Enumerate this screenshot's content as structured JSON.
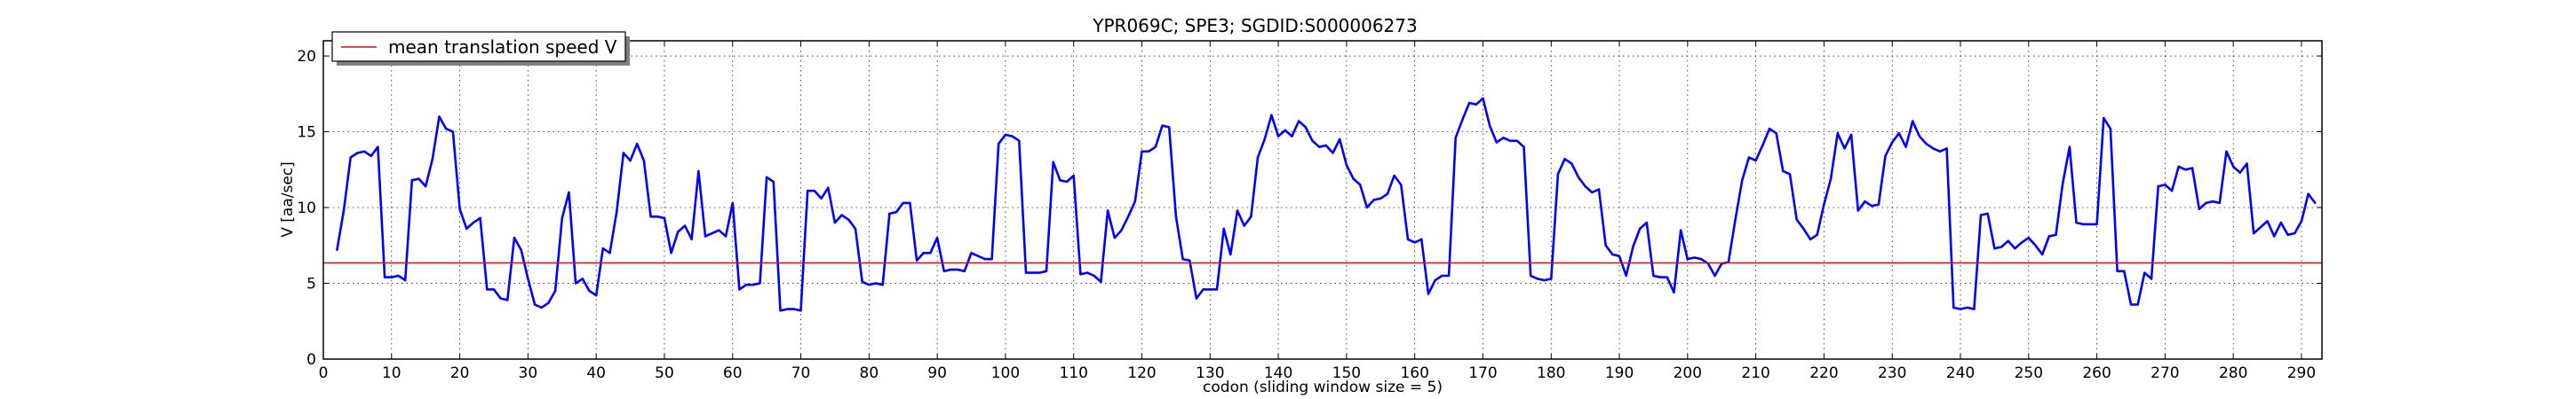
{
  "chart_data": {
    "type": "line",
    "title": "YPR069C; SPE3; SGDID:S000006273",
    "xlabel": "codon  (sliding window size = 5)",
    "ylabel": "V [aa/sec]",
    "xlim": [
      0,
      293
    ],
    "ylim": [
      0,
      21
    ],
    "x_ticks": [
      0,
      10,
      20,
      30,
      40,
      50,
      60,
      70,
      80,
      90,
      100,
      110,
      120,
      130,
      140,
      150,
      160,
      170,
      180,
      190,
      200,
      210,
      220,
      230,
      240,
      250,
      260,
      270,
      280,
      290
    ],
    "y_ticks": [
      0,
      5,
      10,
      15,
      20
    ],
    "grid": true,
    "legend": {
      "position": "top-left",
      "entries": [
        "mean translation speed V"
      ]
    },
    "x_start": 2,
    "series": [
      {
        "color": "#0000ff",
        "values": [
          7.2,
          9.8,
          13.3,
          13.6,
          13.7,
          13.4,
          14.0,
          5.4,
          5.4,
          5.5,
          5.2,
          11.8,
          11.9,
          11.4,
          13.2,
          16.0,
          15.2,
          15.0,
          9.9,
          8.6,
          9.0,
          9.3,
          4.6,
          4.6,
          4.0,
          3.9,
          8.0,
          7.2,
          5.3,
          3.6,
          3.4,
          3.7,
          4.5,
          9.3,
          11.0,
          5.0,
          5.3,
          4.5,
          4.2,
          7.3,
          7.0,
          9.7,
          13.6,
          13.1,
          14.2,
          13.1,
          9.4,
          9.4,
          9.3,
          7.0,
          8.4,
          8.8,
          7.9,
          12.4,
          8.1,
          8.3,
          8.5,
          8.1,
          10.3,
          4.6,
          4.9,
          4.9,
          5.0,
          12.0,
          11.7,
          3.2,
          3.3,
          3.3,
          3.2,
          11.1,
          11.1,
          10.6,
          11.3,
          9.0,
          9.5,
          9.2,
          8.6,
          5.1,
          4.9,
          5.0,
          4.9,
          9.6,
          9.7,
          10.3,
          10.3,
          6.5,
          7.0,
          7.0,
          8.0,
          5.8,
          5.9,
          5.9,
          5.8,
          7.0,
          6.8,
          6.6,
          6.6,
          14.2,
          14.8,
          14.7,
          14.4,
          5.7,
          5.7,
          5.7,
          5.8,
          13.0,
          11.8,
          11.7,
          12.1,
          5.6,
          5.7,
          5.5,
          5.1,
          9.8,
          8.0,
          8.5,
          9.4,
          10.4,
          13.7,
          13.7,
          14.0,
          15.4,
          15.3,
          9.4,
          6.6,
          6.5,
          4.0,
          4.6,
          4.6,
          4.6,
          8.6,
          6.9,
          9.8,
          8.8,
          9.4,
          13.3,
          14.5,
          16.1,
          14.7,
          15.1,
          14.7,
          15.7,
          15.3,
          14.4,
          14.0,
          14.1,
          13.6,
          14.5,
          12.8,
          11.9,
          11.5,
          10.0,
          10.5,
          10.6,
          10.9,
          12.1,
          11.5,
          7.9,
          7.7,
          7.9,
          4.3,
          5.2,
          5.5,
          5.5,
          14.6,
          15.8,
          16.9,
          16.8,
          17.2,
          15.4,
          14.3,
          14.6,
          14.4,
          14.4,
          14.0,
          5.5,
          5.3,
          5.2,
          5.3,
          12.2,
          13.2,
          12.9,
          12.0,
          11.4,
          11.0,
          11.2,
          7.5,
          6.9,
          6.8,
          5.5,
          7.4,
          8.6,
          9.0,
          5.5,
          5.4,
          5.4,
          4.4,
          8.5,
          6.6,
          6.7,
          6.6,
          6.3,
          5.5,
          6.3,
          6.4,
          9.2,
          11.8,
          13.3,
          13.1,
          14.1,
          15.2,
          14.9,
          12.4,
          12.2,
          9.2,
          8.6,
          7.9,
          8.2,
          10.2,
          11.9,
          14.9,
          13.9,
          14.8,
          9.8,
          10.4,
          10.1,
          10.2,
          13.4,
          14.3,
          14.9,
          14.0,
          15.7,
          14.7,
          14.2,
          13.9,
          13.7,
          13.9,
          3.4,
          3.3,
          3.4,
          3.3,
          9.5,
          9.6,
          7.3,
          7.4,
          7.8,
          7.3,
          7.7,
          8.0,
          7.5,
          6.9,
          8.1,
          8.2,
          11.6,
          14.0,
          9.0,
          8.9,
          8.9,
          8.9,
          15.9,
          15.2,
          5.8,
          5.8,
          3.6,
          3.6,
          5.7,
          5.3,
          11.4,
          11.5,
          11.1,
          12.7,
          12.5,
          12.6,
          9.9,
          10.3,
          10.4,
          10.3,
          13.7,
          12.7,
          12.3,
          12.9,
          8.3,
          8.7,
          9.1,
          8.1,
          9.0,
          8.2,
          8.3,
          9.1,
          10.9,
          10.3
        ]
      },
      {
        "name": "mean translation speed V",
        "color": "#ff0000",
        "constant": 6.35
      }
    ]
  }
}
